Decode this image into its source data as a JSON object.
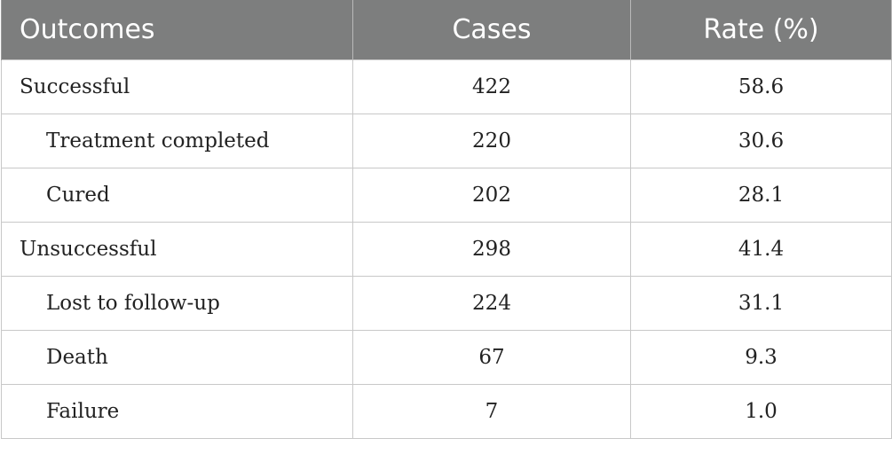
{
  "table": {
    "headers": [
      "Outcomes",
      "Cases",
      "Rate (%)"
    ],
    "rows": [
      {
        "label": "Successful",
        "cases": "422",
        "rate": "58.6"
      },
      {
        "label": "Treatment completed",
        "cases": "220",
        "rate": "30.6"
      },
      {
        "label": "Cured",
        "cases": "202",
        "rate": "28.1"
      },
      {
        "label": "Unsuccessful",
        "cases": "298",
        "rate": "41.4"
      },
      {
        "label": "Lost to follow-up",
        "cases": "224",
        "rate": "31.1"
      },
      {
        "label": "Death",
        "cases": "67",
        "rate": "9.3"
      },
      {
        "label": "Failure",
        "cases": "7",
        "rate": "1.0"
      }
    ]
  },
  "style": {
    "header_bg": "#7d7e7e",
    "header_text": "#ffffff",
    "grid_line": "#c8c8c8"
  }
}
